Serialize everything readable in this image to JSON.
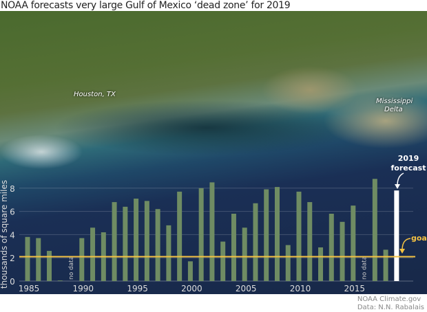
{
  "title": "NOAA forecasts very large Gulf of Mexico ‘dead zone’ for 2019",
  "map_labels": {
    "houston": "Houston, TX",
    "delta_1": "Mississippi",
    "delta_2": "Delta"
  },
  "credit": {
    "line1": "NOAA Climate.gov",
    "line2": "Data: N.N. Rabalais"
  },
  "colors": {
    "bar": "#6f8c63",
    "forecast": "#ffffff",
    "goal": "#f5c242"
  },
  "chart_data": {
    "type": "bar",
    "ylabel": "thousands of square miles",
    "ylim": [
      0,
      8.9
    ],
    "yticks": [
      0,
      2,
      4,
      6,
      8
    ],
    "xticks": [
      1985,
      1990,
      1995,
      2000,
      2005,
      2010,
      2015
    ],
    "grid": true,
    "years": [
      1985,
      1986,
      1987,
      1988,
      1989,
      1990,
      1991,
      1992,
      1993,
      1994,
      1995,
      1996,
      1997,
      1998,
      1999,
      2000,
      2001,
      2002,
      2003,
      2004,
      2005,
      2006,
      2007,
      2008,
      2009,
      2010,
      2011,
      2012,
      2013,
      2014,
      2015,
      2016,
      2017,
      2018
    ],
    "values": [
      3.8,
      3.7,
      2.6,
      0.05,
      null,
      3.7,
      4.6,
      4.2,
      6.8,
      6.4,
      7.1,
      6.9,
      6.2,
      4.8,
      7.7,
      1.7,
      8.0,
      8.5,
      3.4,
      5.8,
      4.6,
      6.7,
      7.9,
      8.1,
      3.1,
      7.7,
      6.8,
      2.9,
      5.8,
      5.1,
      6.5,
      null,
      8.8,
      2.7
    ],
    "no_data_label": "no data",
    "forecast": {
      "year": 2019,
      "value": 7.8,
      "label_1": "2019",
      "label_2": "forecast"
    },
    "goal": {
      "value": 2.1,
      "label": "goal"
    }
  }
}
